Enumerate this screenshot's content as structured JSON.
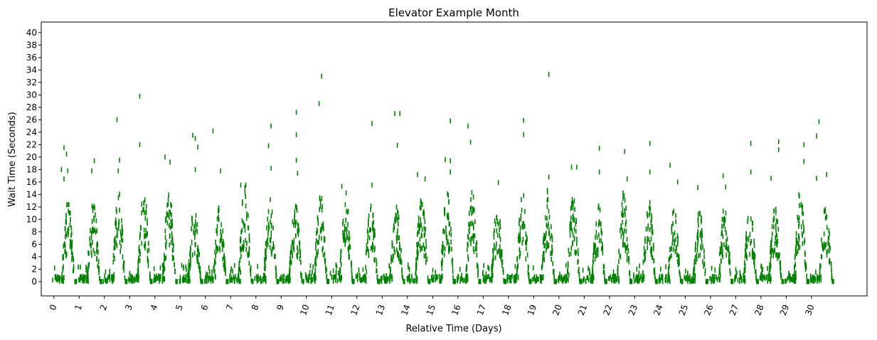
{
  "chart_data": {
    "type": "scatter",
    "marker": "vertical-dash",
    "title": "Elevator Example Month",
    "xlabel": "Relative Time (Days)",
    "ylabel": "Wait Time (Seconds)",
    "xlim": [
      -0.5,
      32.2
    ],
    "ylim": [
      -2.3,
      41.7
    ],
    "x_ticks": [
      0,
      1,
      2,
      3,
      4,
      5,
      6,
      7,
      8,
      9,
      10,
      11,
      12,
      13,
      14,
      15,
      16,
      17,
      18,
      19,
      20,
      21,
      22,
      23,
      24,
      25,
      26,
      27,
      28,
      29,
      30
    ],
    "y_ticks": [
      0,
      2,
      4,
      6,
      8,
      10,
      12,
      14,
      16,
      18,
      20,
      22,
      24,
      26,
      28,
      30,
      32,
      34,
      36,
      38,
      40
    ],
    "x_tick_rotation": 70,
    "grid": false,
    "legend": "none",
    "color": "#008000",
    "series": [
      {
        "daily_peaks": [
          {
            "day": 0,
            "points": [
              [
                0.3,
                18.0
              ],
              [
                0.4,
                21.5
              ],
              [
                0.5,
                20.5
              ],
              [
                0.55,
                17.8
              ],
              [
                0.4,
                16.5
              ]
            ]
          },
          {
            "day": 1,
            "points": [
              [
                1.5,
                17.8
              ],
              [
                1.6,
                19.4
              ]
            ]
          },
          {
            "day": 2,
            "points": [
              [
                2.5,
                26.0
              ],
              [
                2.6,
                19.5
              ],
              [
                2.55,
                17.8
              ]
            ]
          },
          {
            "day": 3,
            "points": [
              [
                3.4,
                29.8
              ],
              [
                3.4,
                22.0
              ]
            ]
          },
          {
            "day": 4,
            "points": [
              [
                4.4,
                20.0
              ],
              [
                4.6,
                19.2
              ]
            ]
          },
          {
            "day": 5,
            "points": [
              [
                5.5,
                23.5
              ],
              [
                5.6,
                23.0
              ],
              [
                5.6,
                18.0
              ],
              [
                5.7,
                21.6
              ]
            ]
          },
          {
            "day": 6,
            "points": [
              [
                6.3,
                24.2
              ],
              [
                6.6,
                17.8
              ]
            ]
          },
          {
            "day": 7,
            "points": [
              [
                7.4,
                15.5
              ],
              [
                7.6,
                15.5
              ]
            ]
          },
          {
            "day": 8,
            "points": [
              [
                8.5,
                21.8
              ],
              [
                8.6,
                25.0
              ],
              [
                8.6,
                18.2
              ]
            ]
          },
          {
            "day": 9,
            "points": [
              [
                9.6,
                27.2
              ],
              [
                9.6,
                23.6
              ],
              [
                9.6,
                19.5
              ],
              [
                9.65,
                17.4
              ]
            ]
          },
          {
            "day": 10,
            "points": [
              [
                10.5,
                28.6
              ],
              [
                10.6,
                33.0
              ]
            ]
          },
          {
            "day": 11,
            "points": [
              [
                11.4,
                15.3
              ]
            ]
          },
          {
            "day": 12,
            "points": [
              [
                12.6,
                25.4
              ],
              [
                12.6,
                15.5
              ]
            ]
          },
          {
            "day": 13,
            "points": [
              [
                13.5,
                27.0
              ],
              [
                13.7,
                27.0
              ],
              [
                13.6,
                21.9
              ]
            ]
          },
          {
            "day": 14,
            "points": [
              [
                14.4,
                17.2
              ],
              [
                14.7,
                16.5
              ]
            ]
          },
          {
            "day": 15,
            "points": [
              [
                15.5,
                19.6
              ],
              [
                15.7,
                25.8
              ],
              [
                15.7,
                19.4
              ],
              [
                15.7,
                17.6
              ]
            ]
          },
          {
            "day": 16,
            "points": [
              [
                16.4,
                25.0
              ],
              [
                16.5,
                22.4
              ]
            ]
          },
          {
            "day": 17,
            "points": [
              [
                17.6,
                15.9
              ]
            ]
          },
          {
            "day": 18,
            "points": [
              [
                18.6,
                25.9
              ],
              [
                18.6,
                23.6
              ]
            ]
          },
          {
            "day": 19,
            "points": [
              [
                19.6,
                33.3
              ],
              [
                19.6,
                16.8
              ]
            ]
          },
          {
            "day": 20,
            "points": [
              [
                20.5,
                18.4
              ],
              [
                20.7,
                18.4
              ]
            ]
          },
          {
            "day": 21,
            "points": [
              [
                21.6,
                21.4
              ],
              [
                21.6,
                17.6
              ]
            ]
          },
          {
            "day": 22,
            "points": [
              [
                22.6,
                20.9
              ],
              [
                22.7,
                16.5
              ]
            ]
          },
          {
            "day": 23,
            "points": [
              [
                23.6,
                22.2
              ],
              [
                23.6,
                17.6
              ]
            ]
          },
          {
            "day": 24,
            "points": [
              [
                24.4,
                18.7
              ],
              [
                24.7,
                16.0
              ]
            ]
          },
          {
            "day": 25,
            "points": [
              [
                25.5,
                15.1
              ]
            ]
          },
          {
            "day": 26,
            "points": [
              [
                26.5,
                17.0
              ],
              [
                26.6,
                15.2
              ]
            ]
          },
          {
            "day": 27,
            "points": [
              [
                27.6,
                22.2
              ],
              [
                27.6,
                17.6
              ]
            ]
          },
          {
            "day": 28,
            "points": [
              [
                28.4,
                16.6
              ],
              [
                28.7,
                22.5
              ],
              [
                28.7,
                21.2
              ]
            ]
          },
          {
            "day": 29,
            "points": [
              [
                29.7,
                22.0
              ],
              [
                29.7,
                19.3
              ]
            ]
          },
          {
            "day": 30,
            "points": [
              [
                30.3,
                25.7
              ],
              [
                30.2,
                23.4
              ],
              [
                30.2,
                16.6
              ],
              [
                30.6,
                17.2
              ]
            ]
          }
        ],
        "daily_max_envelope": [
          13.0,
          13.0,
          14.5,
          15.2,
          14.8,
          12.3,
          12.8,
          15.5,
          13.2,
          12.5,
          14.0,
          14.5,
          12.5,
          12.5,
          14.3,
          14.7,
          14.5,
          12.0,
          14.3,
          15.0,
          14.0,
          12.5,
          14.4,
          13.4,
          11.6,
          11.6,
          12.1,
          12.3,
          12.0,
          15.0,
          12.6
        ]
      }
    ]
  }
}
